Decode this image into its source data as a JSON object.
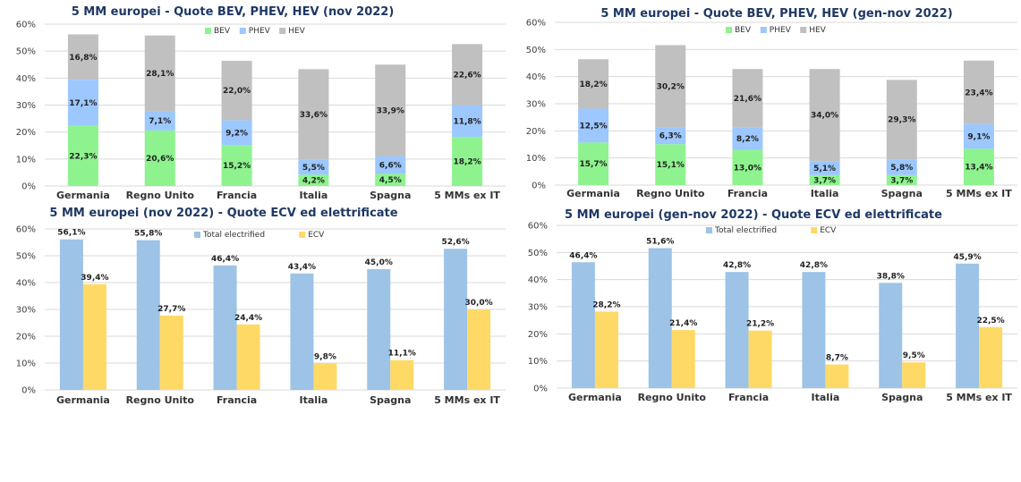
{
  "chart_data": [
    {
      "type": "bar",
      "stacked": true,
      "title": "5 MM europei  - Quote BEV, PHEV, HEV (nov 2022)",
      "categories": [
        "Germania",
        "Regno Unito",
        "Francia",
        "Italia",
        "Spagna",
        "5 MMs ex IT"
      ],
      "series": [
        {
          "name": "BEV",
          "color": "#8ef38e",
          "values": [
            22.3,
            20.6,
            15.2,
            4.2,
            4.5,
            18.2
          ]
        },
        {
          "name": "PHEV",
          "color": "#9cc7ff",
          "values": [
            17.1,
            7.1,
            9.2,
            5.5,
            6.6,
            11.8
          ]
        },
        {
          "name": "HEV",
          "color": "#c0c0c0",
          "values": [
            16.8,
            28.1,
            22.0,
            33.6,
            33.9,
            22.6
          ]
        }
      ],
      "yticks": [
        "0%",
        "10%",
        "20%",
        "30%",
        "40%",
        "50%",
        "60%"
      ],
      "ylim": [
        0,
        60
      ],
      "legend": "top-center"
    },
    {
      "type": "bar",
      "stacked": true,
      "title": "5 MM europei  - Quote BEV, PHEV, HEV (gen-nov 2022)",
      "categories": [
        "Germania",
        "Regno Unito",
        "Francia",
        "Italia",
        "Spagna",
        "5 MMs ex IT"
      ],
      "series": [
        {
          "name": "BEV",
          "color": "#8ef38e",
          "values": [
            15.7,
            15.1,
            13.0,
            3.7,
            3.7,
            13.4
          ]
        },
        {
          "name": "PHEV",
          "color": "#9cc7ff",
          "values": [
            12.5,
            6.3,
            8.2,
            5.1,
            5.8,
            9.1
          ]
        },
        {
          "name": "HEV",
          "color": "#c0c0c0",
          "values": [
            18.2,
            30.2,
            21.6,
            34.0,
            29.3,
            23.4
          ]
        }
      ],
      "yticks": [
        "0%",
        "10%",
        "20%",
        "30%",
        "40%",
        "50%",
        "60%"
      ],
      "ylim": [
        0,
        60
      ],
      "legend": "top-center"
    },
    {
      "type": "bar",
      "stacked": false,
      "title": "5 MM europei (nov 2022) - Quote ECV ed elettrificate",
      "categories": [
        "Germania",
        "Regno Unito",
        "Francia",
        "Italia",
        "Spagna",
        "5 MMs ex IT"
      ],
      "series": [
        {
          "name": "Total electrified",
          "color": "#9dc3e6",
          "values": [
            56.1,
            55.8,
            46.4,
            43.4,
            45.0,
            52.6
          ]
        },
        {
          "name": "ECV",
          "color": "#ffd966",
          "values": [
            39.4,
            27.7,
            24.4,
            9.8,
            11.1,
            30.0
          ]
        }
      ],
      "yticks": [
        "0%",
        "10%",
        "20%",
        "30%",
        "40%",
        "50%",
        "60%"
      ],
      "ylim": [
        0,
        60
      ],
      "legend": "top-center"
    },
    {
      "type": "bar",
      "stacked": false,
      "title": "5 MM europei (gen-nov 2022) - Quote ECV ed elettrificate",
      "categories": [
        "Germania",
        "Regno Unito",
        "Francia",
        "Italia",
        "Spagna",
        "5 MMs ex IT"
      ],
      "series": [
        {
          "name": "Total electrified",
          "color": "#9dc3e6",
          "values": [
            46.4,
            51.6,
            42.8,
            42.8,
            38.8,
            45.9
          ]
        },
        {
          "name": "ECV",
          "color": "#ffd966",
          "values": [
            28.2,
            21.4,
            21.2,
            8.7,
            9.5,
            22.5
          ]
        }
      ],
      "yticks": [
        "0%",
        "10%",
        "20%",
        "30%",
        "40%",
        "50%",
        "60%"
      ],
      "ylim": [
        0,
        60
      ],
      "legend": "top-center"
    }
  ]
}
